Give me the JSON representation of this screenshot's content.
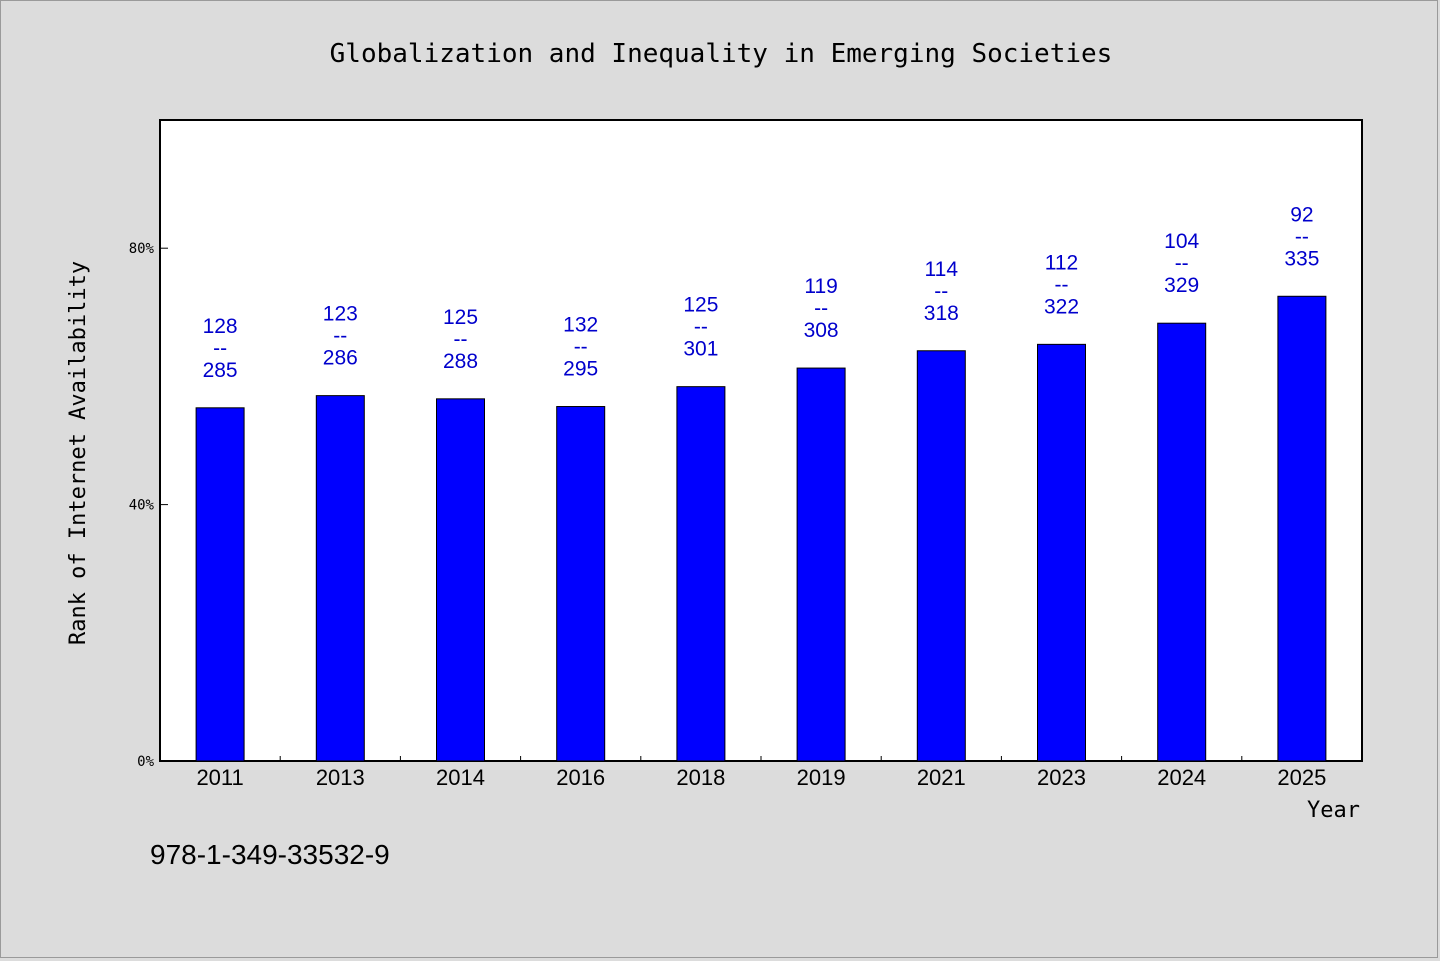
{
  "footer": {
    "isbn": "978-1-349-33532-9"
  },
  "colors": {
    "bar": "#0000ff",
    "label": "#0000cc",
    "background": "#dcdcdc",
    "plot": "#ffffff"
  },
  "chart_data": {
    "type": "bar",
    "title": "Globalization and Inequality in Emerging Societies",
    "xlabel": "Year",
    "ylabel": "Rank of Internet Availability",
    "ylim": [
      0,
      100
    ],
    "yticks": [
      {
        "value": 0,
        "label": "0%"
      },
      {
        "value": 40,
        "label": "40%"
      },
      {
        "value": 80,
        "label": "80%"
      }
    ],
    "categories": [
      "2011",
      "2013",
      "2014",
      "2016",
      "2018",
      "2019",
      "2021",
      "2023",
      "2024",
      "2025"
    ],
    "values": [
      55.1,
      57.0,
      56.5,
      55.3,
      58.4,
      61.3,
      64.0,
      65.0,
      68.3,
      72.5
    ],
    "data_labels": [
      {
        "top": "128",
        "sep": "--",
        "bottom": "285"
      },
      {
        "top": "123",
        "sep": "--",
        "bottom": "286"
      },
      {
        "top": "125",
        "sep": "--",
        "bottom": "288"
      },
      {
        "top": "132",
        "sep": "--",
        "bottom": "295"
      },
      {
        "top": "125",
        "sep": "--",
        "bottom": "301"
      },
      {
        "top": "119",
        "sep": "--",
        "bottom": "308"
      },
      {
        "top": "114",
        "sep": "--",
        "bottom": "318"
      },
      {
        "top": "112",
        "sep": "--",
        "bottom": "322"
      },
      {
        "top": "104",
        "sep": "--",
        "bottom": "329"
      },
      {
        "top": "92",
        "sep": "--",
        "bottom": "335"
      }
    ],
    "grid": false,
    "legend": "none"
  }
}
